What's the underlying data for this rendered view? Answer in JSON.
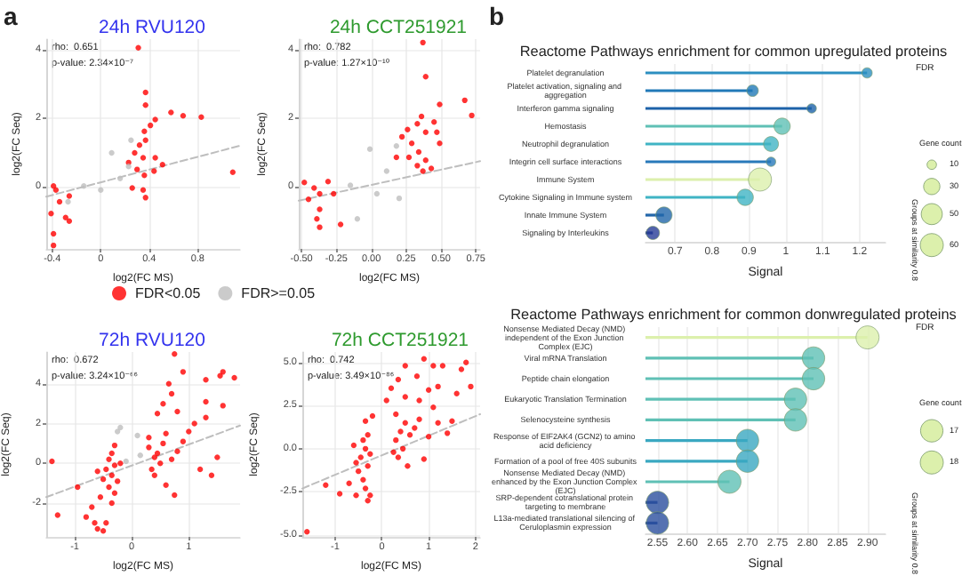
{
  "chart_data": [
    {
      "type": "scatter",
      "title": "24h RVU120",
      "xlabel": "log2(FC MS)",
      "ylabel": "log2(FC Seq)",
      "annotations": [
        "a",
        "rho:  0.651",
        "p-value: 2.34×10⁻⁷"
      ],
      "xlim": [
        -0.45,
        1.15
      ],
      "ylim": [
        -1.8,
        4.3
      ],
      "xticks": [
        -0.4,
        0.0,
        0.4,
        0.8
      ],
      "yticks": [
        0,
        2,
        4
      ],
      "grid": true,
      "marker": "circle",
      "legend": "bottom",
      "series": [
        {
          "name": "FDR<0.05",
          "color": "#ff0000",
          "x": [
            0.31,
            0.37,
            0.37,
            0.58,
            0.68,
            0.83,
            0.45,
            0.41,
            0.36,
            0.37,
            0.32,
            0.28,
            0.35,
            0.45,
            0.51,
            0.23,
            0.3,
            0.44,
            0.36,
            0.26,
            0.35,
            0.37,
            1.09,
            -0.39,
            -0.37,
            -0.26,
            -0.34,
            -0.41,
            -0.29,
            -0.26,
            -0.39,
            -0.39
          ],
          "values": [
            4.05,
            2.75,
            2.38,
            2.17,
            2.07,
            2.03,
            1.96,
            1.79,
            1.62,
            1.36,
            1.22,
            0.99,
            0.85,
            0.85,
            0.65,
            0.71,
            0.51,
            0.46,
            0.34,
            -0.03,
            -0.09,
            -0.31,
            0.43,
            0.03,
            -0.09,
            -0.26,
            -0.43,
            -0.77,
            -0.89,
            -0.99,
            -1.36,
            -1.7
          ]
        },
        {
          "name": "FDR>=0.05",
          "color": "#bebebe",
          "x": [
            0.23,
            0.09,
            -0.14,
            -0.27,
            0.16,
            0.25,
            0.0
          ],
          "values": [
            0.6,
            0.99,
            0.03,
            -0.43,
            0.25,
            1.36,
            -0.09
          ]
        },
        {
          "type": "line",
          "color": "#bebebe",
          "line_style": "dashed",
          "marker": "none",
          "x": [
            -0.45,
            1.15
          ],
          "values": [
            -0.28,
            1.2
          ]
        }
      ]
    },
    {
      "type": "scatter",
      "title": "24h CCT251921",
      "xlabel": "log2(FC MS)",
      "ylabel": "log2(FC Seq)",
      "annotations": [
        "rho:  0.782",
        "p-value: 1.27×10⁻¹⁰"
      ],
      "xlim": [
        -0.52,
        0.78
      ],
      "ylim": [
        -1.8,
        4.3
      ],
      "xticks": [
        {
          "value": -0.5,
          "label": "-0.50"
        },
        {
          "value": -0.25,
          "label": "-0.25"
        },
        {
          "value": 0,
          "label": "0.00"
        },
        {
          "value": 0.25,
          "label": "0.25"
        },
        {
          "value": 0.5,
          "label": "0.50"
        },
        {
          "value": 0.75,
          "label": "0.75"
        }
      ],
      "yticks": [
        0,
        2,
        4
      ],
      "grid": true,
      "marker": "circle",
      "series": [
        {
          "color": "#ff0000",
          "x": [
            0.37,
            0.39,
            0.49,
            0.67,
            0.72,
            0.36,
            0.33,
            0.45,
            0.26,
            0.39,
            0.47,
            0.22,
            0.49,
            0.29,
            0.34,
            0.27,
            0.39,
            0.33,
            0.43,
            0.37,
            0.18,
            -0.48,
            -0.41,
            -0.37,
            -0.31,
            -0.27,
            -0.45,
            -0.37,
            -0.39,
            -0.22,
            -0.37
          ],
          "values": [
            4.2,
            3.21,
            2.4,
            2.52,
            2.08,
            2.05,
            1.84,
            1.89,
            1.67,
            1.59,
            1.59,
            1.46,
            1.27,
            1.27,
            1.02,
            0.86,
            0.78,
            0.62,
            0.54,
            0.46,
            0.86,
            0.13,
            -0.03,
            -0.2,
            0.16,
            -0.2,
            -0.36,
            -0.65,
            -0.93,
            -1.09,
            -1.17
          ]
        },
        {
          "color": "#bebebe",
          "x": [
            -0.01,
            0.18,
            0.04,
            -0.15,
            -0.1,
            0.2,
            0.11
          ],
          "values": [
            1.1,
            1.19,
            -0.2,
            0.05,
            -0.93,
            -0.33,
            0.46
          ]
        },
        {
          "type": "line",
          "color": "#bebebe",
          "line_style": "dashed",
          "marker": "none",
          "x": [
            -0.52,
            0.78
          ],
          "values": [
            -0.4,
            0.75
          ]
        }
      ]
    },
    {
      "type": "scatter",
      "title": "72h RVU120",
      "xlabel": "log2(FC MS)",
      "ylabel": "log2(FC Seq)",
      "annotations": [
        "rho:  0.672",
        "p-value: 3.24×10⁻⁶⁶"
      ],
      "xlim": [
        -1.5,
        1.9
      ],
      "ylim": [
        -3.7,
        5.6
      ],
      "xticks": [
        -1,
        0,
        1
      ],
      "yticks": [
        -2,
        0,
        2,
        4
      ],
      "grid": true,
      "marker": "circle",
      "series": [
        {
          "color": "#ff0000",
          "x": [
            -0.35,
            -0.4,
            -0.3,
            -0.45,
            -0.35,
            -0.25,
            -0.4,
            -0.3,
            -0.5,
            -0.6,
            -0.2,
            -0.35,
            -0.55,
            -0.3,
            -0.7,
            -0.8,
            -0.65,
            -0.45,
            -0.6,
            -1.3,
            -1.4,
            -0.95,
            -0.5,
            0.3,
            0.4,
            0.5,
            0.35,
            0.45,
            0.55,
            0.3,
            0.6,
            0.4,
            0.7,
            0.8,
            0.9,
            1.0,
            0.6,
            0.75,
            1.2,
            1.4,
            1.5,
            1.3,
            1.1,
            0.8,
            0.55,
            0.7,
            0.65,
            0.45,
            1.3,
            1.6,
            1.55,
            1.6,
            1.8,
            1.3,
            0.75,
            0.9
          ],
          "values": [
            0.5,
            0.2,
            -0.1,
            -0.3,
            -0.6,
            -0.9,
            -1.2,
            -1.5,
            -0.8,
            -0.4,
            0.0,
            -2.0,
            -1.7,
            0.9,
            -2.2,
            -2.7,
            -3.0,
            -3.0,
            -3.3,
            -2.6,
            0.1,
            -1.2,
            -3.4,
            0.8,
            0.3,
            0.0,
            -0.3,
            0.5,
            1.0,
            1.3,
            1.5,
            -0.6,
            0.2,
            0.6,
            1.1,
            1.6,
            -1.1,
            -1.6,
            -0.3,
            -0.6,
            0.3,
            2.3,
            2.0,
            2.6,
            3.0,
            3.5,
            4.0,
            2.5,
            3.1,
            2.9,
            4.4,
            4.6,
            4.3,
            4.2,
            5.5,
            4.6
          ]
        },
        {
          "color": "#bebebe",
          "x": [
            -0.2,
            -0.25,
            0.1,
            -0.1,
            0.15
          ],
          "values": [
            1.8,
            1.6,
            1.4,
            0.1,
            0.4
          ]
        },
        {
          "type": "line",
          "color": "#bebebe",
          "line_style": "dashed",
          "marker": "none",
          "x": [
            -1.5,
            1.9
          ],
          "values": [
            -1.7,
            1.9
          ]
        }
      ]
    },
    {
      "type": "scatter",
      "title": "72h CCT251921",
      "xlabel": "log2(FC MS)",
      "ylabel": "log2(FC Seq)",
      "annotations": [
        "rho:  0.742",
        "p-value: 3.49×10⁻⁸⁶"
      ],
      "xlim": [
        -1.7,
        2.1
      ],
      "ylim": [
        -5.1,
        5.6
      ],
      "xticks": [
        -1,
        0,
        1,
        2
      ],
      "yticks": [
        {
          "value": -5,
          "label": "-5.0"
        },
        {
          "value": -2.5,
          "label": "-2.5"
        },
        {
          "value": 0,
          "label": "0.0"
        },
        {
          "value": 2.5,
          "label": "2.5"
        },
        {
          "value": 5,
          "label": "5.0"
        }
      ],
      "grid": true,
      "marker": "circle",
      "series": [
        {
          "color": "#ff0000",
          "x": [
            -0.4,
            -0.35,
            -0.45,
            -0.3,
            -0.5,
            -0.4,
            -0.25,
            -0.6,
            -0.3,
            -0.55,
            -0.35,
            -0.7,
            -0.9,
            -0.55,
            -0.25,
            -0.3,
            -1.2,
            -1.6,
            0.3,
            0.4,
            0.45,
            0.35,
            0.5,
            0.3,
            0.55,
            0.6,
            0.25,
            0.7,
            0.8,
            1.0,
            1.2,
            0.9,
            1.4,
            1.5,
            1.1,
            0.8,
            0.5,
            0.2,
            0.1,
            -0.2,
            -0.35,
            0.35,
            0.5,
            0.9,
            1.1,
            1.3,
            1.7,
            1.8,
            1.9,
            1.6,
            1.2,
            0.75,
            1.0
          ],
          "values": [
            0.5,
            0.0,
            -0.5,
            -1.0,
            -1.3,
            -1.8,
            -0.3,
            0.2,
            0.8,
            -0.8,
            -2.3,
            -2.0,
            -2.6,
            -2.7,
            -2.7,
            -3.0,
            -2.1,
            -4.8,
            0.5,
            1.0,
            0.0,
            -0.5,
            1.5,
            2.0,
            -1.0,
            0.8,
            -0.2,
            1.2,
            1.7,
            0.7,
            1.5,
            -0.6,
            0.9,
            1.6,
            2.4,
            2.8,
            3.0,
            3.5,
            2.8,
            1.9,
            1.6,
            4.0,
            4.8,
            5.2,
            4.8,
            4.8,
            4.6,
            5.0,
            3.6,
            3.2,
            3.6,
            4.2,
            3.4
          ]
        },
        {
          "type": "line",
          "color": "#bebebe",
          "line_style": "dashed",
          "marker": "none",
          "x": [
            -1.7,
            2.1
          ],
          "values": [
            -2.3,
            2.0
          ]
        }
      ]
    },
    {
      "type": "lollipop",
      "orientation": "horizontal",
      "title": "Reactome Pathways enrichment for common upregulated proteins",
      "xlabel": "Signal",
      "annotations": [
        "b",
        "FDR",
        "Groups at similarity 0.8"
      ],
      "legend_title": "Gene count",
      "size_legend": [
        10,
        30,
        50,
        60
      ],
      "xlim": [
        0.62,
        1.27
      ],
      "xticks": [
        0.7,
        0.8,
        0.9,
        1.0,
        1.1,
        1.2
      ],
      "grid": "x",
      "categories": [
        "Platelet degranulation",
        "Platelet activation, signaling and aggregation",
        "Interferon gamma signaling",
        "Hemostasis",
        "Neutrophil degranulation",
        "Integrin cell surface interactions",
        "Immune System",
        "Cytokine Signaling in Immune system",
        "Innate Immune System",
        "Signaling by Interleukins"
      ],
      "values": [
        1.22,
        0.91,
        1.07,
        0.99,
        0.96,
        0.96,
        0.93,
        0.89,
        0.67,
        0.64
      ],
      "sizes": [
        12,
        15,
        10,
        30,
        25,
        10,
        60,
        30,
        30,
        20
      ],
      "colors": [
        "#2c8fc0",
        "#2179b8",
        "#1d62a9",
        "#5fc0b5",
        "#40b4c4",
        "#2879ba",
        "#dcf0ac",
        "#40b4c4",
        "#2266aa",
        "#253c96"
      ]
    },
    {
      "type": "lollipop",
      "orientation": "horizontal",
      "title": "Reactome Pathways enrichment for common donwregulated proteins",
      "xlabel": "Signal",
      "annotations": [
        "FDR",
        "Groups at similarity 0.8"
      ],
      "legend_title": "Gene count",
      "size_legend": [
        17,
        18
      ],
      "xlim": [
        2.53,
        2.93
      ],
      "xticks": [
        {
          "value": 2.55,
          "label": "2.55"
        },
        {
          "value": 2.6,
          "label": "2.60"
        },
        {
          "value": 2.65,
          "label": "2.65"
        },
        {
          "value": 2.7,
          "label": "2.70"
        },
        {
          "value": 2.75,
          "label": "2.75"
        },
        {
          "value": 2.8,
          "label": "2.80"
        },
        {
          "value": 2.85,
          "label": "2.85"
        },
        {
          "value": 2.9,
          "label": "2.90"
        }
      ],
      "grid": "x",
      "categories": [
        "Nonsense Mediated Decay (NMD) independent of the Exon Junction Complex (EJC)",
        "Viral mRNA Translation",
        "Peptide chain elongation",
        "Eukaryotic Translation Termination",
        "Selenocysteine synthesis",
        "Response of EIF2AK4 (GCN2) to amino acid deficiency",
        "Formation of a pool of free 40S subunits",
        "Nonsense Mediated Decay (NMD) enhanced by the Exon Junction Complex (EJC)",
        "SRP-dependent cotranslational protein targeting to membrane",
        "L13a-mediated translational silencing of Ceruloplasmin expression"
      ],
      "values": [
        2.9,
        2.81,
        2.81,
        2.78,
        2.78,
        2.7,
        2.7,
        2.67,
        2.55,
        2.55
      ],
      "sizes": [
        18,
        17,
        17,
        17,
        17,
        17,
        17,
        18,
        17,
        17
      ],
      "colors": [
        "#dcf0ac",
        "#5fc0b5",
        "#5fc0b5",
        "#5fc0b5",
        "#5fc0b5",
        "#3aa8c1",
        "#3aa8c1",
        "#5fc0b5",
        "#2a4f9e",
        "#2a4f9e"
      ]
    }
  ]
}
